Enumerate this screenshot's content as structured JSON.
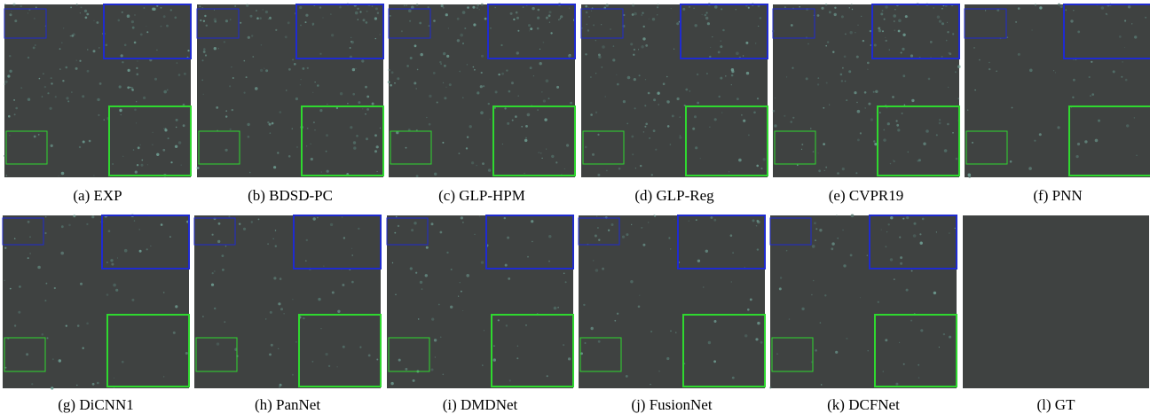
{
  "panels": [
    {
      "caption": "(a) EXP"
    },
    {
      "caption": "(b) BDSD-PC"
    },
    {
      "caption": "(c) GLP-HPM"
    },
    {
      "caption": "(d) GLP-Reg"
    },
    {
      "caption": "(e) CVPR19"
    },
    {
      "caption": "(f) PNN"
    },
    {
      "caption": "(g) DiCNN1"
    },
    {
      "caption": "(h) PanNet"
    },
    {
      "caption": "(i) DMDNet"
    },
    {
      "caption": "(j) FusionNet"
    },
    {
      "caption": "(k) DCFNet"
    },
    {
      "caption": "(l) GT"
    }
  ]
}
